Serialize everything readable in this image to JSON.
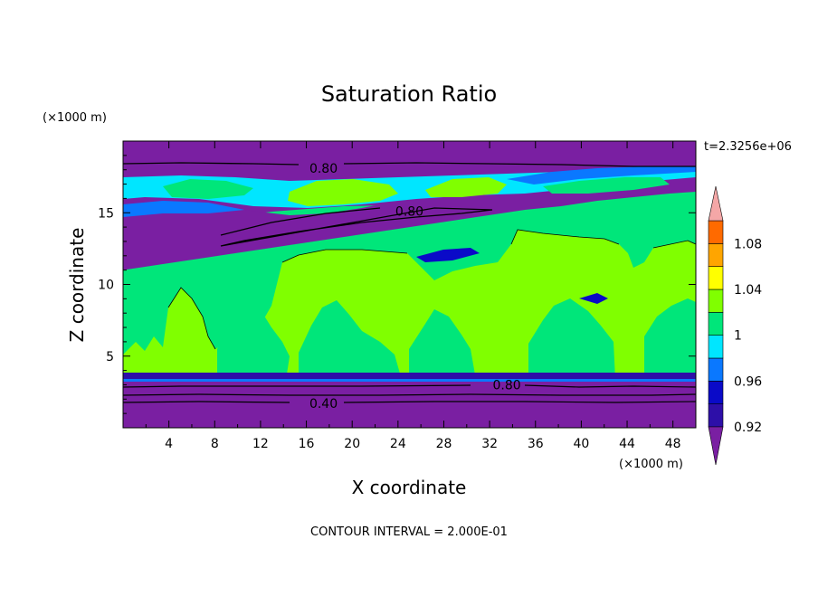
{
  "chart_data": {
    "type": "heatmap",
    "title": "Saturation Ratio",
    "xlabel": "X coordinate",
    "ylabel": "Z coordinate",
    "x_unit": "(×1000 m)",
    "y_unit": "(×1000 m)",
    "time_label": "t=2.3256e+06",
    "footer": "CONTOUR INTERVAL = 2.000E-01",
    "xlim": [
      0,
      50
    ],
    "ylim": [
      0,
      20
    ],
    "x_ticks": [
      {
        "value": 4,
        "label": "4"
      },
      {
        "value": 8,
        "label": "8"
      },
      {
        "value": 12,
        "label": "12"
      },
      {
        "value": 16,
        "label": "16"
      },
      {
        "value": 20,
        "label": "20"
      },
      {
        "value": 24,
        "label": "24"
      },
      {
        "value": 28,
        "label": "28"
      },
      {
        "value": 32,
        "label": "32"
      },
      {
        "value": 36,
        "label": "36"
      },
      {
        "value": 40,
        "label": "40"
      },
      {
        "value": 44,
        "label": "44"
      },
      {
        "value": 48,
        "label": "48"
      }
    ],
    "y_ticks": [
      {
        "value": 5,
        "label": "5"
      },
      {
        "value": 10,
        "label": "10"
      },
      {
        "value": 15,
        "label": "15"
      }
    ],
    "contour_labels": [
      {
        "text": "0.80",
        "x": 17.5,
        "y": 18.1
      },
      {
        "text": "0.80",
        "x": 25.0,
        "y": 15.1
      },
      {
        "text": "0.80",
        "x": 33.5,
        "y": 3.0
      },
      {
        "text": "0.40",
        "x": 17.5,
        "y": 1.7
      }
    ],
    "colorbar": {
      "levels": [
        0.92,
        0.94,
        0.96,
        0.98,
        1.0,
        1.02,
        1.04,
        1.06,
        1.08,
        1.1
      ],
      "colors": [
        "#7a1fa2",
        "#2d0fa8",
        "#0a0ac8",
        "#0a78ff",
        "#00e6ff",
        "#00e67a",
        "#80ff00",
        "#ffff00",
        "#ffa500",
        "#ff6a00",
        "#ff2020",
        "#f4a7a7"
      ],
      "tick_labels": [
        {
          "value": 0.92,
          "label": "0.92"
        },
        {
          "value": 0.96,
          "label": "0.96"
        },
        {
          "value": 1.0,
          "label": "1"
        },
        {
          "value": 1.04,
          "label": "1.04"
        },
        {
          "value": 1.08,
          "label": "1.08"
        }
      ]
    },
    "regions": [
      {
        "band": "purple",
        "z_range": [
          0,
          3.3
        ],
        "value": 0.4
      },
      {
        "band": "dark-blue",
        "z_range": [
          3.3,
          3.6
        ],
        "value": 0.93
      },
      {
        "band": "green",
        "z_range": [
          3.6,
          5.5
        ],
        "value": 0.99
      },
      {
        "band": "lime",
        "z_range": [
          5.5,
          12.0
        ],
        "value": 1.01
      },
      {
        "band": "green",
        "z_range": [
          12.0,
          14.0
        ],
        "value": 0.99
      },
      {
        "band": "purple",
        "z_range": [
          14.0,
          16.0
        ],
        "value": 0.85
      },
      {
        "band": "cyan",
        "z_range": [
          16.0,
          17.2
        ],
        "value": 0.97
      },
      {
        "band": "purple",
        "z_range": [
          17.2,
          20.0
        ],
        "value": 0.8
      }
    ]
  }
}
